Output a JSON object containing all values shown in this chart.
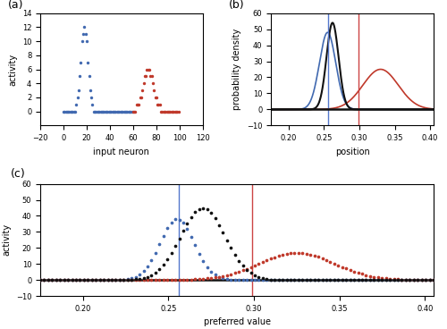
{
  "panel_a": {
    "blue_peak_neuron": 18,
    "blue_peak_val": 12,
    "blue_sigma": 3.0,
    "red_peak_neuron": 73,
    "red_peak_val": 6,
    "red_sigma": 4.5,
    "n_blue": 60,
    "n_red": 40,
    "xlabel": "input neuron",
    "ylabel": "activity",
    "xlim": [
      -20,
      120
    ],
    "ylim": [
      -2,
      14
    ],
    "yticks": [
      0,
      2,
      4,
      6,
      8,
      10,
      12,
      14
    ],
    "xticks": [
      -20,
      0,
      20,
      40,
      60,
      80,
      100,
      120
    ]
  },
  "panel_b": {
    "vis_mean": 0.255,
    "vis_std": 0.0115,
    "vis_amp": 48,
    "aud_mean": 0.33,
    "aud_std": 0.025,
    "aud_amp": 25,
    "full_mean": 0.262,
    "full_std": 0.0085,
    "full_amp": 54,
    "vis_line": 0.256,
    "aud_line": 0.299,
    "xlabel": "position",
    "ylabel": "probability density",
    "xlim": [
      0.175,
      0.405
    ],
    "ylim": [
      -10,
      60
    ],
    "yticks": [
      -10,
      0,
      10,
      20,
      30,
      40,
      50,
      60
    ],
    "xticks": [
      0.2,
      0.25,
      0.3,
      0.35,
      0.4
    ]
  },
  "panel_c": {
    "vis_mean": 0.255,
    "vis_std": 0.01,
    "vis_amp": 38,
    "aud_mean": 0.325,
    "aud_std": 0.022,
    "aud_amp": 17,
    "full_mean": 0.27,
    "full_std": 0.013,
    "full_amp": 45,
    "vis_line": 0.256,
    "aud_line": 0.299,
    "xlabel": "preferred value",
    "ylabel": "activity",
    "xlim": [
      0.175,
      0.405
    ],
    "ylim": [
      -10,
      60
    ],
    "yticks": [
      -10,
      0,
      10,
      20,
      30,
      40,
      50,
      60
    ],
    "xticks": [
      0.2,
      0.25,
      0.3,
      0.35,
      0.4
    ],
    "n_points": 100
  },
  "colors": {
    "blue": "#4169b0",
    "red": "#c0392b",
    "black": "#111111",
    "vis_line": "#5577cc",
    "aud_line": "#cc4444"
  },
  "label_fontsize": 7,
  "tick_fontsize": 6,
  "panel_label_fontsize": 9
}
